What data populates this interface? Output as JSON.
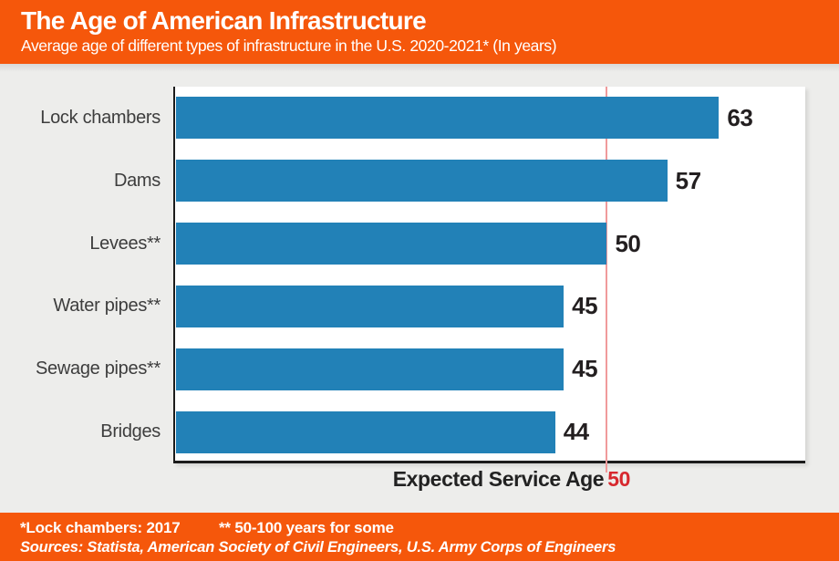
{
  "header": {
    "title": "The Age of American Infrastructure",
    "subtitle": "Average age of different types of infrastructure in the U.S. 2020-2021* (In years)"
  },
  "chart_data": {
    "type": "bar",
    "orientation": "horizontal",
    "title": "The Age of American Infrastructure",
    "subtitle": "Average age of different types of infrastructure in the U.S. 2020-2021* (In years)",
    "categories": [
      "Lock chambers",
      "Dams",
      "Levees**",
      "Water pipes**",
      "Sewage pipes**",
      "Bridges"
    ],
    "values": [
      63,
      57,
      50,
      45,
      45,
      44
    ],
    "unit": "years",
    "xlim": [
      0,
      73
    ],
    "grid": false,
    "value_labels_shown": true,
    "reference_line": {
      "value": 50,
      "label": "Expected Service Age",
      "color": "#f09a9b"
    }
  },
  "annotation": {
    "expected_service_label": "Expected Service Age",
    "expected_service_value": "50"
  },
  "footer": {
    "note1": "*Lock chambers: 2017",
    "note2": "** 50-100 years for some",
    "sources": "Sources: Statista, American Society of Civil Engineers, U.S. Army Corps of Engineers"
  },
  "colors": {
    "accent_orange": "#f5570b",
    "bar_blue": "#2281b7",
    "reference_line_pink": "#f09a9b",
    "highlight_red": "#d7282e",
    "body_background": "#ededeb",
    "axis_black": "#1b1b1b"
  }
}
